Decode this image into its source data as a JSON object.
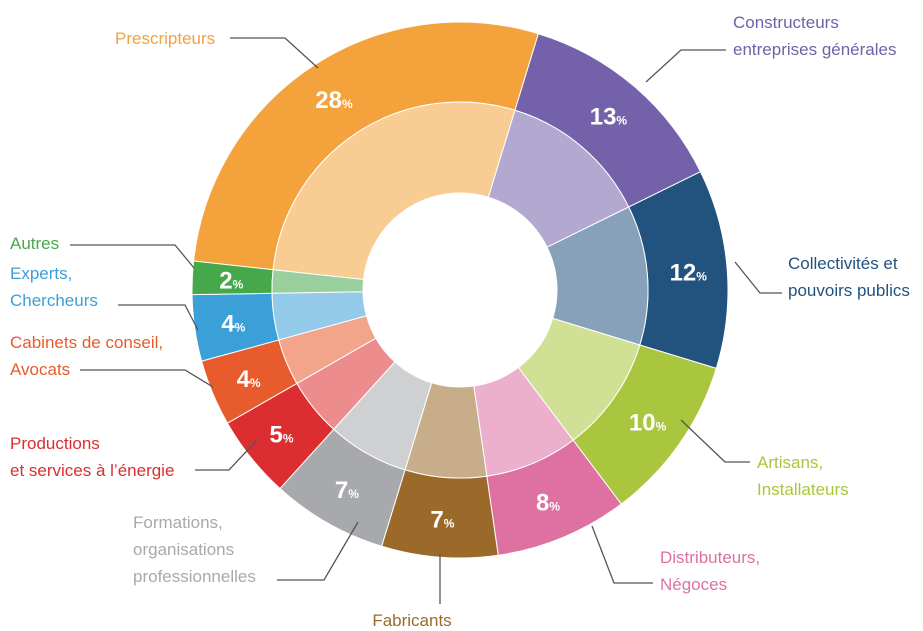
{
  "chart_data": {
    "type": "donut",
    "categories": [
      "Prescripteurs",
      "Constructeurs\nentreprises générales",
      "Collectivités et\npouvoirs publics",
      "Artisans,\nInstallateurs",
      "Distributeurs,\nNégoces",
      "Fabricants",
      "Formations,\norganisations\nprofessionnelles",
      "Productions\net services à l’énergie",
      "Cabinets de conseil,\nAvocats",
      "Experts,\nChercheurs",
      "Autres"
    ],
    "values": [
      28,
      13,
      12,
      10,
      8,
      7,
      7,
      5,
      4,
      4,
      2
    ],
    "value_labels": [
      "28%",
      "13%",
      "12%",
      "10%",
      "8%",
      "7%",
      "7%",
      "5%",
      "4%",
      "4%",
      "2%"
    ],
    "colors": [
      "#f4a23c",
      "#7361a9",
      "#22537f",
      "#a9c63e",
      "#de70a2",
      "#9b6a2b",
      "#a8a9ac",
      "#dc2e30",
      "#e85b2c",
      "#3b9fd8",
      "#45a84b"
    ]
  }
}
